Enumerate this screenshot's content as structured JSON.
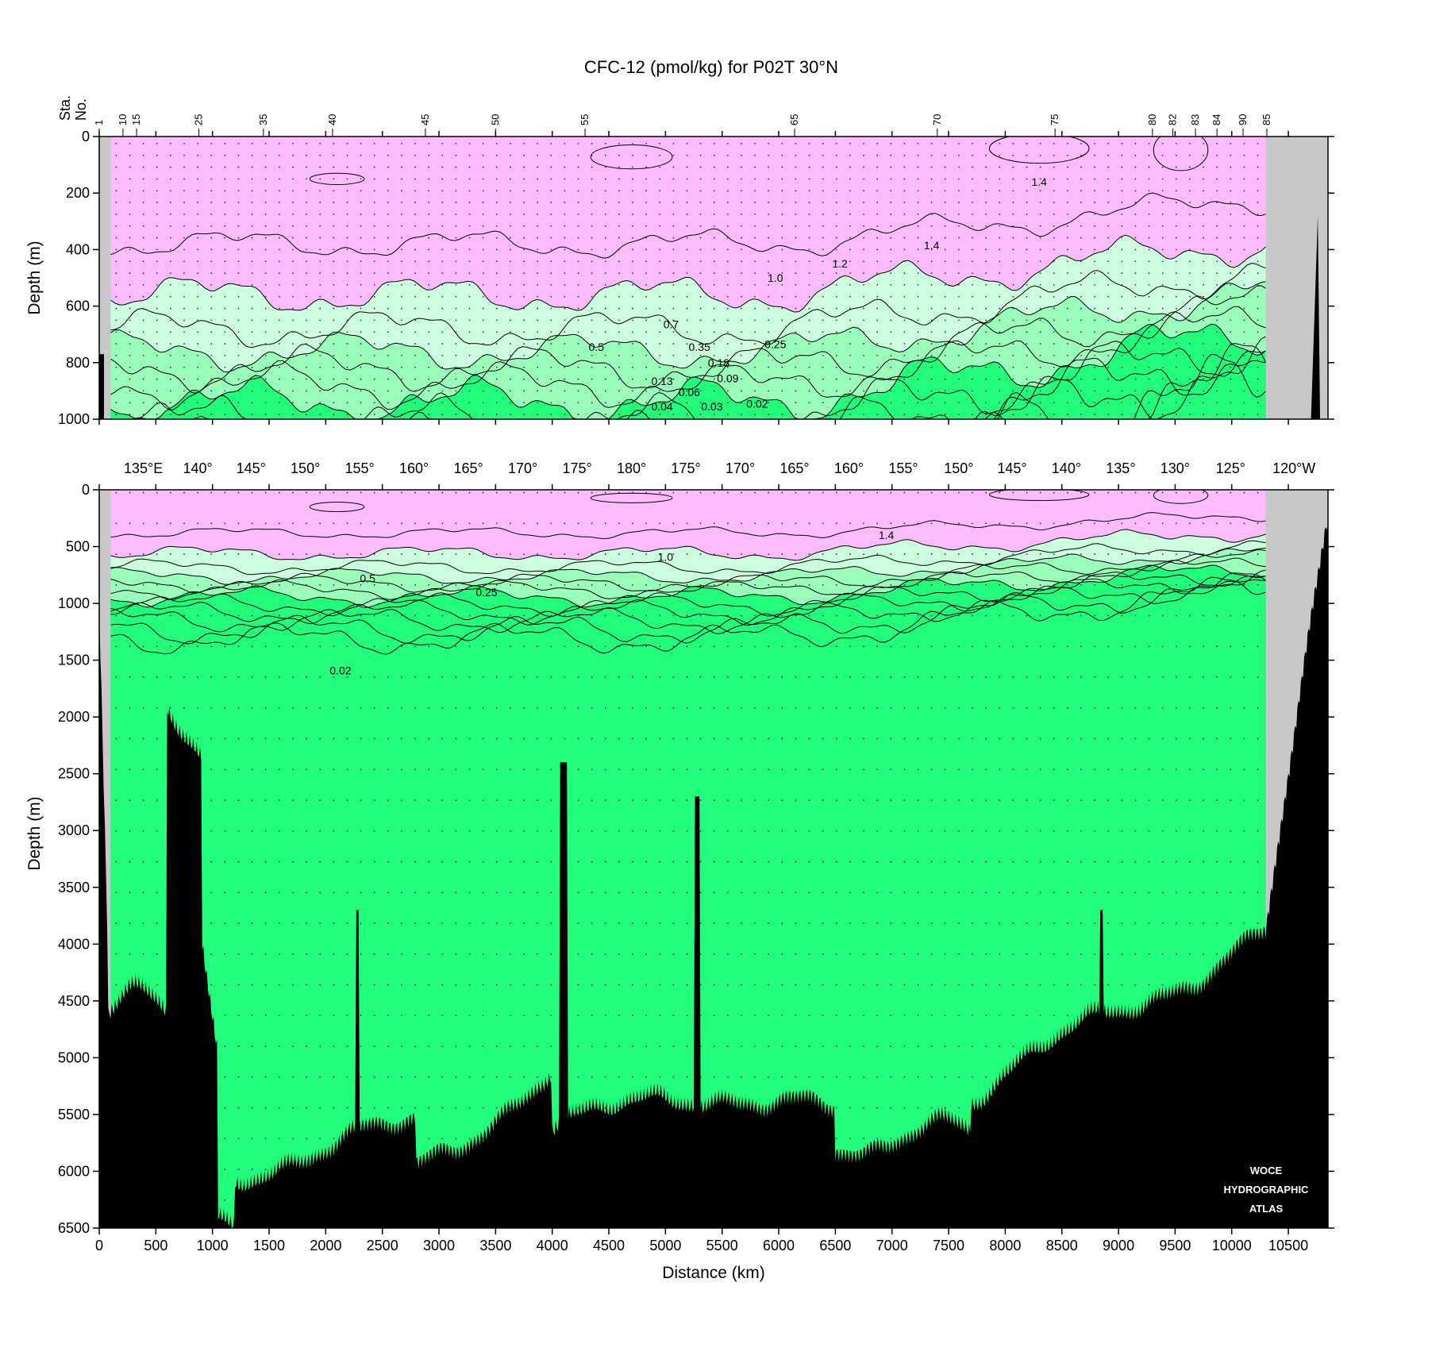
{
  "chart_data": [
    {
      "type": "section-contour",
      "title": "CFC-12 (pmol/kg) for P02T 30°N",
      "xlabel": "",
      "ylabel": "Depth (m)",
      "xlim": [
        0,
        10850
      ],
      "ylim": [
        1000,
        0
      ],
      "y_ticks": [
        0,
        200,
        400,
        600,
        800,
        1000
      ],
      "station_axis_label": [
        "Sta.",
        "No."
      ],
      "stations": [
        {
          "label": "1",
          "x": 0
        },
        {
          "label": "10",
          "x": 210
        },
        {
          "label": "15",
          "x": 330
        },
        {
          "label": "25",
          "x": 880
        },
        {
          "label": "35",
          "x": 1450
        },
        {
          "label": "40",
          "x": 2060
        },
        {
          "label": "45",
          "x": 2880
        },
        {
          "label": "50",
          "x": 3500
        },
        {
          "label": "55",
          "x": 4290
        },
        {
          "label": "65",
          "x": 6140
        },
        {
          "label": "70",
          "x": 7400
        },
        {
          "label": "75",
          "x": 8440
        },
        {
          "label": "80",
          "x": 9300
        },
        {
          "label": "82",
          "x": 9480
        },
        {
          "label": "83",
          "x": 9680
        },
        {
          "label": "84",
          "x": 9870
        },
        {
          "label": "90",
          "x": 10100
        },
        {
          "label": "85",
          "x": 10310
        }
      ],
      "contour_labels": [
        {
          "text": "1.4",
          "x": 8300,
          "y": 160
        },
        {
          "text": "1.4",
          "x": 7350,
          "y": 385
        },
        {
          "text": "1.2",
          "x": 6540,
          "y": 450
        },
        {
          "text": "1.0",
          "x": 5970,
          "y": 500
        },
        {
          "text": "0.7",
          "x": 5050,
          "y": 665
        },
        {
          "text": "0.5",
          "x": 4390,
          "y": 745
        },
        {
          "text": "0.35",
          "x": 5300,
          "y": 745
        },
        {
          "text": "0.25",
          "x": 5970,
          "y": 735
        },
        {
          "text": "0.18",
          "x": 5470,
          "y": 800
        },
        {
          "text": "0.13",
          "x": 4970,
          "y": 865
        },
        {
          "text": "0.09",
          "x": 5550,
          "y": 855
        },
        {
          "text": "0.06",
          "x": 5210,
          "y": 905
        },
        {
          "text": "0.04",
          "x": 4970,
          "y": 955
        },
        {
          "text": "0.03",
          "x": 5410,
          "y": 955
        },
        {
          "text": "0.02",
          "x": 5810,
          "y": 945
        }
      ]
    },
    {
      "type": "section-contour",
      "title": "",
      "xlabel": "Distance (km)",
      "ylabel": "Depth (m)",
      "xlim": [
        0,
        10850
      ],
      "ylim": [
        6500,
        0
      ],
      "x_ticks": [
        0,
        500,
        1000,
        1500,
        2000,
        2500,
        3000,
        3500,
        4000,
        4500,
        5000,
        5500,
        6000,
        6500,
        7000,
        7500,
        8000,
        8500,
        9000,
        9500,
        10000,
        10500
      ],
      "y_ticks": [
        0,
        500,
        1000,
        1500,
        2000,
        2500,
        3000,
        3500,
        4000,
        4500,
        5000,
        5500,
        6000,
        6500
      ],
      "longitudes": [
        {
          "label": "135°E",
          "x": 390
        },
        {
          "label": "140°",
          "x": 870
        },
        {
          "label": "145°",
          "x": 1340
        },
        {
          "label": "150°",
          "x": 1820
        },
        {
          "label": "155°",
          "x": 2300
        },
        {
          "label": "160°",
          "x": 2780
        },
        {
          "label": "165°",
          "x": 3260
        },
        {
          "label": "170°",
          "x": 3740
        },
        {
          "label": "175°",
          "x": 4220
        },
        {
          "label": "180°",
          "x": 4700
        },
        {
          "label": "175°",
          "x": 5180
        },
        {
          "label": "170°",
          "x": 5660
        },
        {
          "label": "165°",
          "x": 6140
        },
        {
          "label": "160°",
          "x": 6620
        },
        {
          "label": "155°",
          "x": 7100
        },
        {
          "label": "150°",
          "x": 7590
        },
        {
          "label": "145°",
          "x": 8060
        },
        {
          "label": "140°",
          "x": 8540
        },
        {
          "label": "135°",
          "x": 9020
        },
        {
          "label": "130°",
          "x": 9500
        },
        {
          "label": "125°",
          "x": 9990
        },
        {
          "label": "120°W",
          "x": 10550
        }
      ],
      "contour_labels": [
        {
          "text": "1.4",
          "x": 6950,
          "y": 400
        },
        {
          "text": "1.0",
          "x": 5000,
          "y": 590
        },
        {
          "text": "0.5",
          "x": 2370,
          "y": 780
        },
        {
          "text": "0.25",
          "x": 3420,
          "y": 900
        },
        {
          "text": "0.02",
          "x": 2130,
          "y": 1590
        }
      ],
      "watermark": [
        "WOCE",
        "HYDROGRAPHIC",
        "ATLAS"
      ]
    }
  ],
  "colors": {
    "band_high": "#ffbbff",
    "band_mid": "#ccffdd",
    "band_mid2": "#99ffbb",
    "band_low": "#22ff7b",
    "land": "#c8c8c8",
    "bathymetry": "#000000"
  }
}
